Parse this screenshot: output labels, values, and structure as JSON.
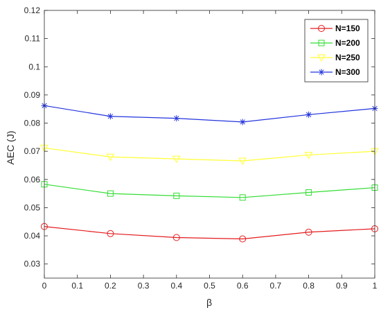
{
  "chart_data": {
    "type": "line",
    "x": [
      0,
      0.2,
      0.4,
      0.6,
      0.8,
      1
    ],
    "xlabel": "β",
    "ylabel": "AEC (J)",
    "xlim": [
      0,
      1
    ],
    "ylim": [
      0.025,
      0.12
    ],
    "xticks": [
      "0",
      "0.1",
      "0.2",
      "0.3",
      "0.4",
      "0.5",
      "0.6",
      "0.7",
      "0.8",
      "0.9",
      "1"
    ],
    "yticks": [
      "0.03",
      "0.04",
      "0.05",
      "0.06",
      "0.07",
      "0.08",
      "0.09",
      "0.1",
      "0.11",
      "0.12"
    ],
    "grid": false,
    "legend_position": "top-right",
    "series": [
      {
        "name": "N=150",
        "color": "#e41a1c",
        "marker": "circle",
        "values": [
          0.0433,
          0.0408,
          0.0394,
          0.0389,
          0.0413,
          0.0425
        ]
      },
      {
        "name": "N=200",
        "color": "#33dd33",
        "marker": "square",
        "values": [
          0.0583,
          0.055,
          0.0542,
          0.0536,
          0.0554,
          0.0571
        ]
      },
      {
        "name": "N=250",
        "color": "#ffff33",
        "marker": "triangle-down",
        "values": [
          0.0712,
          0.068,
          0.0673,
          0.0666,
          0.0687,
          0.07
        ]
      },
      {
        "name": "N=300",
        "color": "#2233dd",
        "marker": "star",
        "values": [
          0.0862,
          0.0824,
          0.0817,
          0.0804,
          0.083,
          0.0852
        ]
      }
    ]
  }
}
